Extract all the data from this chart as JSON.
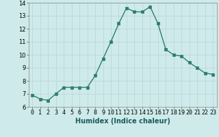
{
  "x": [
    0,
    1,
    2,
    3,
    4,
    5,
    6,
    7,
    8,
    9,
    10,
    11,
    12,
    13,
    14,
    15,
    16,
    17,
    18,
    19,
    20,
    21,
    22,
    23
  ],
  "y": [
    6.9,
    6.6,
    6.5,
    7.0,
    7.5,
    7.5,
    7.5,
    7.5,
    8.4,
    9.7,
    11.0,
    12.4,
    13.6,
    13.3,
    13.3,
    13.7,
    12.4,
    10.4,
    10.0,
    9.9,
    9.4,
    9.0,
    8.6,
    8.5
  ],
  "line_color": "#2d7d6e",
  "marker": "s",
  "marker_size": 2.5,
  "bg_color": "#ceeaea",
  "grid_color": "#b8d4d4",
  "xlabel": "Humidex (Indice chaleur)",
  "xlim": [
    -0.5,
    23.5
  ],
  "ylim": [
    6,
    14
  ],
  "yticks": [
    6,
    7,
    8,
    9,
    10,
    11,
    12,
    13,
    14
  ],
  "xticks": [
    0,
    1,
    2,
    3,
    4,
    5,
    6,
    7,
    8,
    9,
    10,
    11,
    12,
    13,
    14,
    15,
    16,
    17,
    18,
    19,
    20,
    21,
    22,
    23
  ],
  "xlabel_fontsize": 7,
  "tick_fontsize": 6,
  "line_width": 1.0
}
